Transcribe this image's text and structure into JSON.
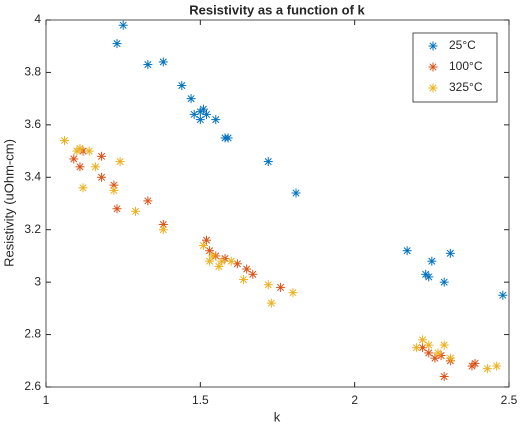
{
  "chart_data": {
    "type": "scatter",
    "title": "Resistivity as a function of k",
    "x_label": "k",
    "y_label": "Resistivity (uOhm-cm)",
    "xlim": [
      1,
      2.5
    ],
    "xticks": [
      1,
      1.5,
      2,
      2.5
    ],
    "ylim": [
      2.6,
      4
    ],
    "yticks": [
      2.6,
      2.8,
      3,
      3.2,
      3.4,
      3.6,
      3.8,
      4
    ],
    "grid": false,
    "legend_position": "top-right",
    "marker": "asterisk",
    "series": [
      {
        "name": "25°C",
        "color": "#0072bd",
        "x": [
          1.23,
          1.25,
          1.33,
          1.38,
          1.44,
          1.47,
          1.48,
          1.5,
          1.51,
          1.5,
          1.52,
          1.55,
          1.58,
          1.59,
          1.72,
          1.81,
          2.17,
          2.23,
          2.24,
          2.25,
          2.29,
          2.31,
          2.48
        ],
        "values": [
          3.91,
          3.98,
          3.83,
          3.84,
          3.75,
          3.7,
          3.64,
          3.65,
          3.66,
          3.62,
          3.64,
          3.62,
          3.55,
          3.55,
          3.46,
          3.34,
          3.12,
          3.03,
          3.02,
          3.08,
          3.0,
          3.11,
          2.95
        ]
      },
      {
        "name": "100°C",
        "color": "#d95319",
        "x": [
          1.09,
          1.11,
          1.12,
          1.18,
          1.18,
          1.22,
          1.23,
          1.33,
          1.38,
          1.52,
          1.53,
          1.55,
          1.58,
          1.62,
          1.65,
          1.67,
          1.76,
          2.22,
          2.24,
          2.26,
          2.28,
          2.29,
          2.31,
          2.38,
          2.39
        ],
        "values": [
          3.47,
          3.44,
          3.5,
          3.48,
          3.4,
          3.37,
          3.28,
          3.31,
          3.22,
          3.16,
          3.12,
          3.1,
          3.09,
          3.07,
          3.05,
          3.03,
          2.98,
          2.75,
          2.73,
          2.71,
          2.72,
          2.64,
          2.7,
          2.68,
          2.69
        ]
      },
      {
        "name": "325°C",
        "color": "#edb120",
        "x": [
          1.06,
          1.1,
          1.11,
          1.12,
          1.14,
          1.16,
          1.22,
          1.24,
          1.29,
          1.38,
          1.51,
          1.53,
          1.54,
          1.56,
          1.57,
          1.6,
          1.64,
          1.72,
          1.73,
          1.8,
          2.2,
          2.22,
          2.24,
          2.27,
          2.29,
          2.31,
          2.43,
          2.46
        ],
        "values": [
          3.54,
          3.5,
          3.51,
          3.36,
          3.5,
          3.44,
          3.35,
          3.46,
          3.27,
          3.2,
          3.14,
          3.08,
          3.1,
          3.06,
          3.08,
          3.08,
          3.01,
          2.99,
          2.92,
          2.96,
          2.75,
          2.78,
          2.76,
          2.73,
          2.76,
          2.71,
          2.67,
          2.68
        ]
      }
    ]
  }
}
